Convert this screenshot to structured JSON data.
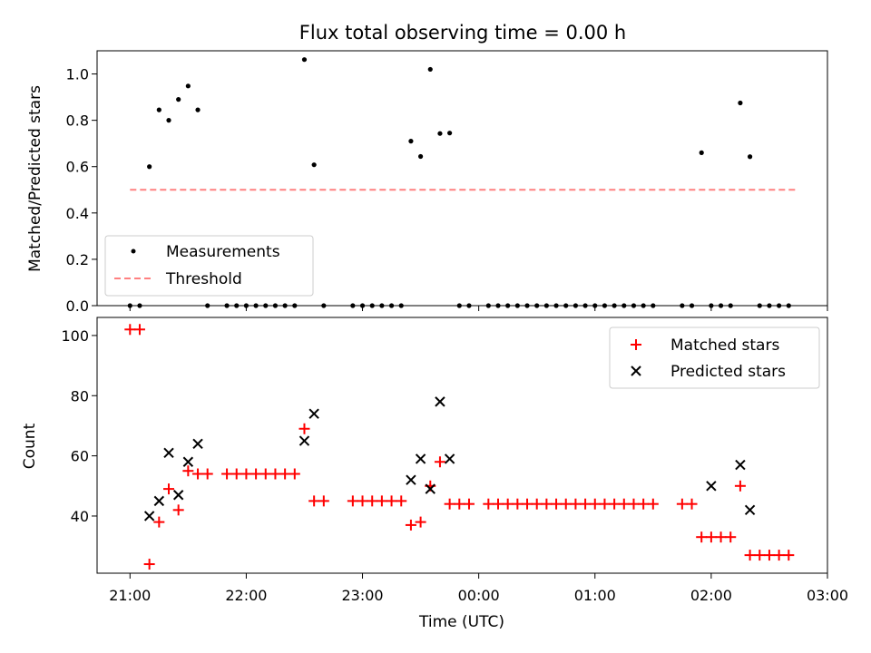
{
  "chart_data": [
    {
      "type": "scatter",
      "title": "Flux total observing time = 0.00 h",
      "ylabel": "Matched/Predicted stars",
      "xlim": [
        "20:43",
        "03:00"
      ],
      "ylim": [
        0,
        1.1
      ],
      "y_ticks": [
        "0.0",
        "0.2",
        "0.4",
        "0.6",
        "0.8",
        "1.0"
      ],
      "legend_position": "lower-left",
      "series": [
        {
          "name": "Measurements",
          "color": "#000000",
          "marker": "dot",
          "points": [
            [
              "21:00",
              0
            ],
            [
              "21:05",
              0
            ],
            [
              "21:10",
              0.6
            ],
            [
              "21:15",
              0.845
            ],
            [
              "21:20",
              0.8
            ],
            [
              "21:25",
              0.89
            ],
            [
              "21:30",
              0.948
            ],
            [
              "21:35",
              0.845
            ],
            [
              "21:40",
              0
            ],
            [
              "21:50",
              0
            ],
            [
              "21:55",
              0
            ],
            [
              "22:00",
              0
            ],
            [
              "22:05",
              0
            ],
            [
              "22:10",
              0
            ],
            [
              "22:15",
              0
            ],
            [
              "22:20",
              0
            ],
            [
              "22:25",
              0
            ],
            [
              "22:30",
              1.062
            ],
            [
              "22:35",
              0.608
            ],
            [
              "22:40",
              0
            ],
            [
              "22:55",
              0
            ],
            [
              "23:00",
              0
            ],
            [
              "23:05",
              0
            ],
            [
              "23:10",
              0
            ],
            [
              "23:15",
              0
            ],
            [
              "23:20",
              0
            ],
            [
              "23:25",
              0.71
            ],
            [
              "23:30",
              0.644
            ],
            [
              "23:35",
              1.02
            ],
            [
              "23:40",
              0.743
            ],
            [
              "23:45",
              0.745
            ],
            [
              "23:50",
              0
            ],
            [
              "23:55",
              0
            ],
            [
              "00:05",
              0
            ],
            [
              "00:10",
              0
            ],
            [
              "00:15",
              0
            ],
            [
              "00:20",
              0
            ],
            [
              "00:25",
              0
            ],
            [
              "00:30",
              0
            ],
            [
              "00:35",
              0
            ],
            [
              "00:40",
              0
            ],
            [
              "00:45",
              0
            ],
            [
              "00:50",
              0
            ],
            [
              "00:55",
              0
            ],
            [
              "01:00",
              0
            ],
            [
              "01:05",
              0
            ],
            [
              "01:10",
              0
            ],
            [
              "01:15",
              0
            ],
            [
              "01:20",
              0
            ],
            [
              "01:25",
              0
            ],
            [
              "01:30",
              0
            ],
            [
              "01:45",
              0
            ],
            [
              "01:50",
              0
            ],
            [
              "01:55",
              0.66
            ],
            [
              "02:00",
              0
            ],
            [
              "02:05",
              0
            ],
            [
              "02:10",
              0
            ],
            [
              "02:15",
              0.875
            ],
            [
              "02:20",
              0.643
            ],
            [
              "02:25",
              0
            ],
            [
              "02:30",
              0
            ],
            [
              "02:35",
              0
            ],
            [
              "02:40",
              0
            ]
          ]
        },
        {
          "name": "Threshold",
          "color": "#ff8080",
          "style": "dashed",
          "points": [
            [
              "21:00",
              0.5
            ],
            [
              "02:45",
              0.5
            ]
          ]
        }
      ]
    },
    {
      "type": "scatter",
      "xlabel": "Time (UTC)",
      "ylabel": "Count",
      "xlim": [
        "20:43",
        "03:00"
      ],
      "ylim": [
        21,
        106
      ],
      "x_ticks": [
        "21:00",
        "22:00",
        "23:00",
        "00:00",
        "01:00",
        "02:00",
        "03:00"
      ],
      "y_ticks": [
        "40",
        "60",
        "80",
        "100"
      ],
      "legend_position": "upper-right",
      "series": [
        {
          "name": "Matched stars",
          "color": "#ff0000",
          "marker": "plus",
          "points": [
            [
              "21:00",
              102
            ],
            [
              "21:05",
              102
            ],
            [
              "21:10",
              24
            ],
            [
              "21:15",
              38
            ],
            [
              "21:20",
              49
            ],
            [
              "21:25",
              42
            ],
            [
              "21:30",
              55
            ],
            [
              "21:35",
              54
            ],
            [
              "21:40",
              54
            ],
            [
              "21:50",
              54
            ],
            [
              "21:55",
              54
            ],
            [
              "22:00",
              54
            ],
            [
              "22:05",
              54
            ],
            [
              "22:10",
              54
            ],
            [
              "22:15",
              54
            ],
            [
              "22:20",
              54
            ],
            [
              "22:25",
              54
            ],
            [
              "22:30",
              69
            ],
            [
              "22:35",
              45
            ],
            [
              "22:40",
              45
            ],
            [
              "22:55",
              45
            ],
            [
              "23:00",
              45
            ],
            [
              "23:05",
              45
            ],
            [
              "23:10",
              45
            ],
            [
              "23:15",
              45
            ],
            [
              "23:20",
              45
            ],
            [
              "23:25",
              37
            ],
            [
              "23:30",
              38
            ],
            [
              "23:35",
              50
            ],
            [
              "23:40",
              58
            ],
            [
              "23:45",
              44
            ],
            [
              "23:50",
              44
            ],
            [
              "23:55",
              44
            ],
            [
              "00:05",
              44
            ],
            [
              "00:10",
              44
            ],
            [
              "00:15",
              44
            ],
            [
              "00:20",
              44
            ],
            [
              "00:25",
              44
            ],
            [
              "00:30",
              44
            ],
            [
              "00:35",
              44
            ],
            [
              "00:40",
              44
            ],
            [
              "00:45",
              44
            ],
            [
              "00:50",
              44
            ],
            [
              "00:55",
              44
            ],
            [
              "01:00",
              44
            ],
            [
              "01:05",
              44
            ],
            [
              "01:10",
              44
            ],
            [
              "01:15",
              44
            ],
            [
              "01:20",
              44
            ],
            [
              "01:25",
              44
            ],
            [
              "01:30",
              44
            ],
            [
              "01:45",
              44
            ],
            [
              "01:50",
              44
            ],
            [
              "01:55",
              33
            ],
            [
              "02:00",
              33
            ],
            [
              "02:05",
              33
            ],
            [
              "02:10",
              33
            ],
            [
              "02:15",
              50
            ],
            [
              "02:20",
              27
            ],
            [
              "02:25",
              27
            ],
            [
              "02:30",
              27
            ],
            [
              "02:35",
              27
            ],
            [
              "02:40",
              27
            ]
          ]
        },
        {
          "name": "Predicted stars",
          "color": "#000000",
          "marker": "x",
          "points": [
            [
              "21:10",
              40
            ],
            [
              "21:15",
              45
            ],
            [
              "21:20",
              61
            ],
            [
              "21:25",
              47
            ],
            [
              "21:30",
              58
            ],
            [
              "21:35",
              64
            ],
            [
              "22:30",
              65
            ],
            [
              "22:35",
              74
            ],
            [
              "23:25",
              52
            ],
            [
              "23:30",
              59
            ],
            [
              "23:35",
              49
            ],
            [
              "23:40",
              78
            ],
            [
              "23:45",
              59
            ],
            [
              "02:00",
              50
            ],
            [
              "02:15",
              57
            ],
            [
              "02:20",
              42
            ]
          ]
        }
      ]
    }
  ]
}
